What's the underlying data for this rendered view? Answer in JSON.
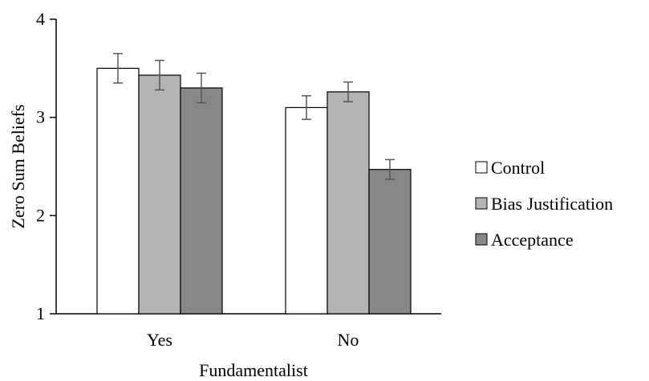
{
  "chart_data": {
    "type": "bar",
    "title": "",
    "xlabel": "Fundamentalist",
    "ylabel": "Zero Sum Beliefs",
    "ylim": [
      1,
      4
    ],
    "yticks": [
      "1",
      "2",
      "3",
      "4"
    ],
    "grid": false,
    "legend_position": "right",
    "categories": [
      "Yes",
      "No"
    ],
    "series": [
      {
        "name": "Control",
        "color": "#ffffff",
        "values": [
          3.5,
          3.1
        ],
        "err": [
          0.15,
          0.12
        ]
      },
      {
        "name": "Bias Justification",
        "color": "#b3b3b3",
        "values": [
          3.43,
          3.26
        ],
        "err": [
          0.15,
          0.1
        ]
      },
      {
        "name": "Acceptance",
        "color": "#878787",
        "values": [
          3.3,
          2.47
        ],
        "err": [
          0.15,
          0.1
        ]
      }
    ]
  }
}
